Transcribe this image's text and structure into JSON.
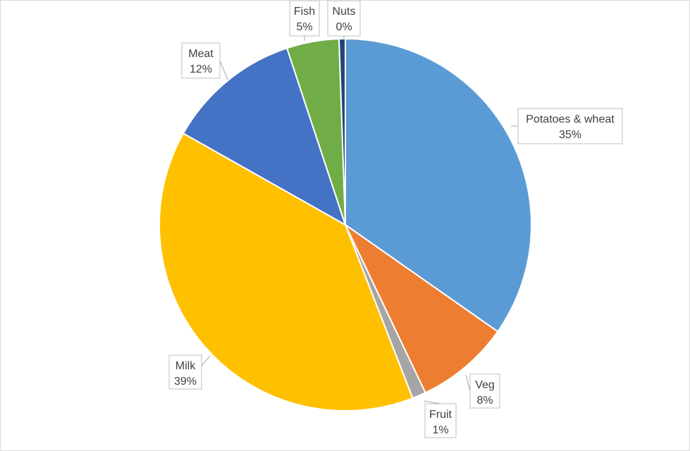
{
  "chart_data": {
    "type": "pie",
    "title": "",
    "slices": [
      {
        "label": "Potatoes & wheat",
        "value": 35,
        "value_label": "35%",
        "color": "#5B9BD5"
      },
      {
        "label": "Veg",
        "value": 8,
        "value_label": "8%",
        "color": "#ED7D31"
      },
      {
        "label": "Fruit",
        "value": 1,
        "value_label": "1%",
        "color": "#A5A5A5"
      },
      {
        "label": "Milk",
        "value": 39,
        "value_label": "39%",
        "color": "#FFC000"
      },
      {
        "label": "Meat",
        "value": 12,
        "value_label": "12%",
        "color": "#4472C4"
      },
      {
        "label": "Fish",
        "value": 5,
        "value_label": "5%",
        "color": "#70AD47"
      },
      {
        "label": "Nuts",
        "value": 0,
        "value_label": "0%",
        "color": "#264478"
      }
    ],
    "start_angle_deg": 0,
    "direction": "clockwise",
    "legend": "none",
    "data_labels": "outside-with-leader-lines"
  }
}
